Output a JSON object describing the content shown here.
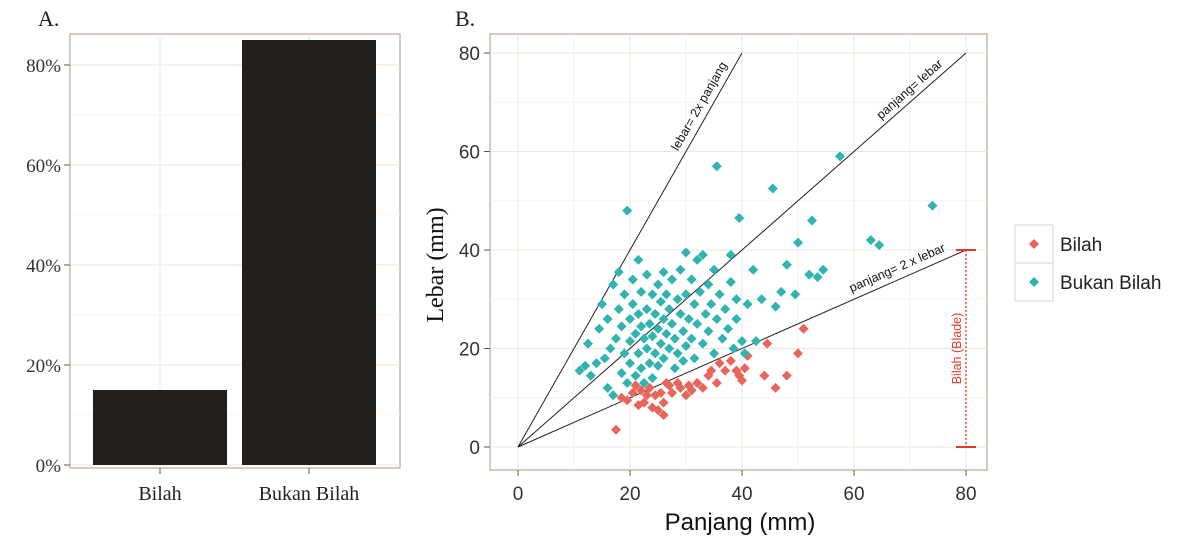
{
  "chart_data": [
    {
      "panel_label": "A.",
      "type": "bar",
      "categories": [
        "Bilah",
        "Bukan Bilah"
      ],
      "values": [
        0.15,
        0.85
      ],
      "ylim": [
        0,
        0.88
      ],
      "yticks": [
        {
          "value": 0,
          "label": "0%"
        },
        {
          "value": 0.2,
          "label": "20%"
        },
        {
          "value": 0.4,
          "label": "40%"
        },
        {
          "value": 0.6,
          "label": "60%"
        },
        {
          "value": 0.8,
          "label": "80%"
        }
      ],
      "bar_color": "#231f1c",
      "grid": true
    },
    {
      "panel_label": "B.",
      "type": "scatter",
      "xlabel": "Panjang (mm)",
      "ylabel": "Lebar (mm)",
      "xlim": [
        -5,
        82
      ],
      "ylim": [
        -2,
        81
      ],
      "xticks": [
        0,
        20,
        40,
        60,
        80
      ],
      "yticks": [
        0,
        20,
        40,
        60,
        80
      ],
      "grid": true,
      "legend": {
        "placement": "right",
        "items": [
          {
            "name": "Bilah",
            "color": "#e8655c"
          },
          {
            "name": "Bukan Bilah",
            "color": "#2fb4b0"
          }
        ]
      },
      "reference_lines": [
        {
          "label": "lebar= 2x panjang",
          "from": [
            0,
            0
          ],
          "to": [
            40,
            80
          ]
        },
        {
          "label": "panjang= lebar",
          "from": [
            0,
            0
          ],
          "to": [
            80,
            80
          ]
        },
        {
          "label": "panjang= 2 x lebar",
          "from": [
            0,
            0
          ],
          "to": [
            80,
            40
          ]
        }
      ],
      "range_marker": {
        "label": "Bilah (Blade)",
        "x": 80,
        "y_from": 0,
        "y_to": 40,
        "color": "#e03a2a"
      },
      "series": [
        {
          "name": "Bilah",
          "color": "#e8655c",
          "points": [
            [
              17.5,
              3.5
            ],
            [
              18.5,
              10
            ],
            [
              19.5,
              9.5
            ],
            [
              20.5,
              11
            ],
            [
              21,
              12.5
            ],
            [
              21.5,
              8.5
            ],
            [
              22,
              11.5
            ],
            [
              22.5,
              9
            ],
            [
              23,
              10.5
            ],
            [
              23.5,
              12
            ],
            [
              24,
              8
            ],
            [
              24.5,
              10.5
            ],
            [
              25,
              7.5
            ],
            [
              25.5,
              11
            ],
            [
              26,
              9
            ],
            [
              26.5,
              13
            ],
            [
              26,
              6.5
            ],
            [
              27,
              12.5
            ],
            [
              27.5,
              11
            ],
            [
              28.5,
              13
            ],
            [
              29,
              12
            ],
            [
              30,
              10.5
            ],
            [
              30.5,
              12.5
            ],
            [
              31,
              11.5
            ],
            [
              32,
              13
            ],
            [
              33,
              12
            ],
            [
              34,
              14.5
            ],
            [
              34.5,
              15.5
            ],
            [
              35.5,
              13
            ],
            [
              36,
              17
            ],
            [
              37,
              15.5
            ],
            [
              38,
              17.5
            ],
            [
              39,
              15.5
            ],
            [
              39.5,
              14.5
            ],
            [
              40,
              13.5
            ],
            [
              40.5,
              16
            ],
            [
              41,
              18.5
            ],
            [
              44,
              14.5
            ],
            [
              44.5,
              21
            ],
            [
              46,
              12
            ],
            [
              48,
              14.5
            ],
            [
              50,
              19
            ],
            [
              51,
              24
            ]
          ]
        },
        {
          "name": "Bukan Bilah",
          "color": "#2fb4b0",
          "points": [
            [
              11,
              15.5
            ],
            [
              12,
              16.5
            ],
            [
              12.5,
              21
            ],
            [
              13,
              14.5
            ],
            [
              14,
              17
            ],
            [
              14.5,
              24
            ],
            [
              15,
              29
            ],
            [
              15.5,
              18
            ],
            [
              16,
              12
            ],
            [
              16,
              26
            ],
            [
              16.5,
              20
            ],
            [
              17,
              33
            ],
            [
              17,
              10.5
            ],
            [
              17.5,
              22
            ],
            [
              18,
              28
            ],
            [
              18,
              35.5
            ],
            [
              18.5,
              15
            ],
            [
              18.5,
              24.5
            ],
            [
              19,
              31
            ],
            [
              19,
              19
            ],
            [
              19.5,
              48
            ],
            [
              19.5,
              13
            ],
            [
              20,
              26
            ],
            [
              20,
              21.5
            ],
            [
              20,
              17
            ],
            [
              20.5,
              34
            ],
            [
              20.5,
              29
            ],
            [
              21,
              23
            ],
            [
              21,
              14.5
            ],
            [
              21.5,
              38
            ],
            [
              21.5,
              27
            ],
            [
              21.5,
              19
            ],
            [
              22,
              31.5
            ],
            [
              22,
              24.5
            ],
            [
              22,
              16
            ],
            [
              22.5,
              22
            ],
            [
              22.5,
              13
            ],
            [
              23,
              35
            ],
            [
              23,
              28
            ],
            [
              23,
              20
            ],
            [
              23.5,
              25
            ],
            [
              23.5,
              17
            ],
            [
              24,
              31
            ],
            [
              24,
              22.5
            ],
            [
              24,
              14
            ],
            [
              24.5,
              27
            ],
            [
              24.5,
              19
            ],
            [
              25,
              33
            ],
            [
              25,
              24
            ],
            [
              25,
              16.5
            ],
            [
              25.5,
              29.5
            ],
            [
              25.5,
              21
            ],
            [
              26,
              35.5
            ],
            [
              26,
              26
            ],
            [
              26,
              18
            ],
            [
              26.5,
              23
            ],
            [
              26.5,
              31
            ],
            [
              27,
              28
            ],
            [
              27,
              20
            ],
            [
              27.5,
              34
            ],
            [
              27.5,
              25
            ],
            [
              28,
              22
            ],
            [
              28,
              16
            ],
            [
              28.5,
              30
            ],
            [
              28.5,
              19
            ],
            [
              29,
              27
            ],
            [
              29,
              36
            ],
            [
              29.5,
              23.5
            ],
            [
              29.5,
              17.5
            ],
            [
              30,
              39.5
            ],
            [
              30,
              31
            ],
            [
              30,
              20.5
            ],
            [
              30.5,
              26
            ],
            [
              31,
              34
            ],
            [
              31,
              22
            ],
            [
              31.5,
              29
            ],
            [
              31.5,
              18
            ],
            [
              32,
              38
            ],
            [
              32,
              25
            ],
            [
              32.5,
              31.5
            ],
            [
              33,
              21
            ],
            [
              33,
              39
            ],
            [
              33.5,
              27
            ],
            [
              34,
              33
            ],
            [
              34,
              23.5
            ],
            [
              34.5,
              29
            ],
            [
              35,
              36
            ],
            [
              35,
              19
            ],
            [
              35.5,
              26
            ],
            [
              35.5,
              57
            ],
            [
              36,
              31
            ],
            [
              36.5,
              22
            ],
            [
              37,
              28
            ],
            [
              37.5,
              24
            ],
            [
              38,
              33.5
            ],
            [
              38,
              39
            ],
            [
              38.5,
              20
            ],
            [
              39,
              26
            ],
            [
              39,
              30
            ],
            [
              39.5,
              46.5
            ],
            [
              40,
              21.5
            ],
            [
              40.5,
              19
            ],
            [
              41,
              29
            ],
            [
              42,
              36
            ],
            [
              42.5,
              21.5
            ],
            [
              43.5,
              30
            ],
            [
              45.5,
              52.5
            ],
            [
              46,
              28.5
            ],
            [
              47,
              31.5
            ],
            [
              48,
              37
            ],
            [
              49.5,
              31
            ],
            [
              50,
              41.5
            ],
            [
              52,
              35
            ],
            [
              52.5,
              46
            ],
            [
              53.5,
              34.5
            ],
            [
              54.5,
              36
            ],
            [
              57.5,
              59
            ],
            [
              63,
              42
            ],
            [
              64.5,
              41
            ],
            [
              74,
              49
            ]
          ]
        }
      ]
    }
  ]
}
